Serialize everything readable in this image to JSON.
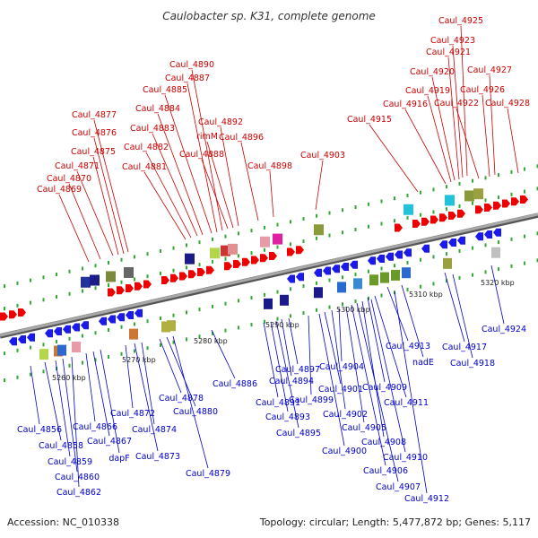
{
  "title": "Caulobacter sp. K31, complete genome",
  "footer": {
    "accession": "Accession: NC_010338",
    "summary": "Topology: circular; Length: 5,477,872 bp; Genes: 5,117"
  },
  "ruler_labels": [
    "5260 kbp",
    "5270 kbp",
    "5280 kbp",
    "5290 kbp",
    "5300 kbp",
    "5310 kbp",
    "5320 kbp"
  ],
  "upper_labels": [
    "Caul_4925",
    "Caul_4923",
    "Caul_4921",
    "Caul_4920",
    "Caul_4927",
    "Caul_4919",
    "Caul_4926",
    "Caul_4916",
    "Caul_4922",
    "Caul_4928",
    "Caul_4915",
    "Caul_4903",
    "Caul_4898",
    "Caul_4896",
    "Caul_4892",
    "rimM",
    "Caul_4888",
    "Caul_4890",
    "Caul_4887",
    "Caul_4885",
    "Caul_4884",
    "Caul_4883",
    "Caul_4882",
    "Caul_4881",
    "Caul_4877",
    "Caul_4876",
    "Caul_4875",
    "Caul_4871",
    "Caul_4870",
    "Caul_4869"
  ],
  "lower_labels": [
    "Caul_4924",
    "Caul_4917",
    "Caul_4913",
    "Caul_4918",
    "nadE",
    "Caul_4911",
    "Caul_4909",
    "Caul_4910",
    "Caul_4908",
    "Caul_4912",
    "Caul_4907",
    "Caul_4906",
    "Caul_4905",
    "Caul_4904",
    "Caul_4902",
    "Caul_4901",
    "Caul_4900",
    "Caul_4899",
    "Caul_4897",
    "Caul_4894",
    "Caul_4895",
    "Caul_4893",
    "Caul_4891",
    "Caul_4886",
    "Caul_4879",
    "Caul_4880",
    "Caul_4878",
    "Caul_4874",
    "Caul_4873",
    "Caul_4872",
    "dapF",
    "Caul_4867",
    "Caul_4866",
    "Caul_4862",
    "Caul_4860",
    "Caul_4859",
    "Caul_4858",
    "Caul_4856"
  ],
  "colors": {
    "forward_gene": "#ee0000",
    "reverse_gene": "#1a1aee",
    "upper_label": "#cc0000",
    "lower_label": "#0000cc",
    "backbone": "#8a8a8a",
    "tick": "#33aa33"
  }
}
